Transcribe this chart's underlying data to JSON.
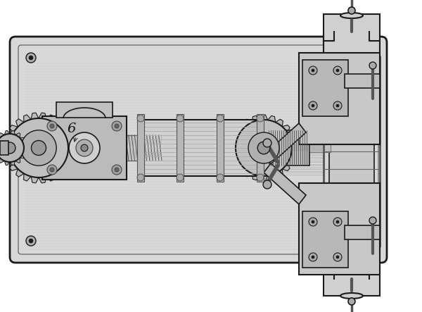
{
  "background_color": "#ffffff",
  "figure_width": 6.0,
  "figure_height": 4.43,
  "dpi": 100,
  "bg": "#f0f0f0",
  "dark": "#1a1a1a",
  "mid": "#888888",
  "light": "#cccccc",
  "lighter": "#e0e0e0",
  "white": "#ffffff"
}
